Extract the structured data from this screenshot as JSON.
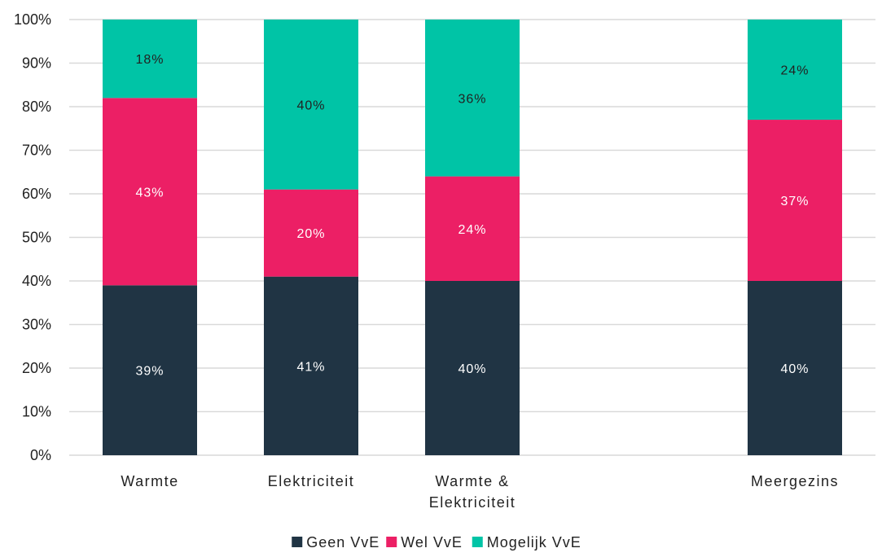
{
  "chart_data": {
    "type": "bar",
    "stacked": true,
    "categories": [
      [
        "Warmte"
      ],
      [
        "Elektriciteit"
      ],
      [
        "Warmte &",
        "Elektriciteit"
      ],
      [],
      [
        "Meergezins"
      ]
    ],
    "series": [
      {
        "name": "Geen VvE",
        "values": [
          39,
          41,
          40,
          null,
          40
        ],
        "labels": [
          "39%",
          "41%",
          "40%",
          "",
          "40%"
        ]
      },
      {
        "name": "Wel VvE",
        "values": [
          43,
          20,
          24,
          null,
          37
        ],
        "labels": [
          "43%",
          "20%",
          "24%",
          "",
          "37%"
        ]
      },
      {
        "name": "Mogelijk VvE",
        "values": [
          18,
          40,
          36,
          null,
          24
        ],
        "labels": [
          "18%",
          "40%",
          "36%",
          "",
          "24%"
        ]
      }
    ],
    "yticks": [
      "0%",
      "10%",
      "20%",
      "30%",
      "40%",
      "50%",
      "60%",
      "70%",
      "80%",
      "90%",
      "100%"
    ],
    "ylim": [
      0,
      100
    ],
    "grid": true,
    "legend_position": "bottom",
    "colors": [
      "#203444",
      "#EC1F65",
      "#00C4A6"
    ],
    "label_colors": [
      "#ffffff",
      "#ffffff",
      "#222222"
    ]
  }
}
